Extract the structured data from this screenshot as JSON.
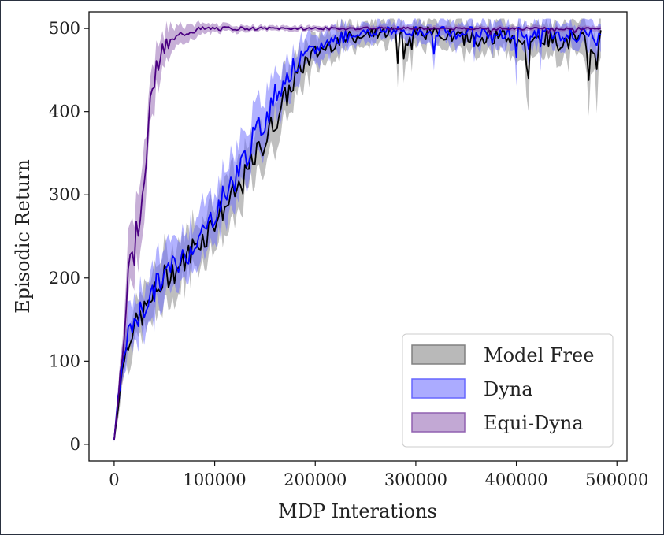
{
  "chart_data": {
    "type": "line",
    "title": "",
    "xlabel": "MDP Interations",
    "ylabel": "Episodic Return",
    "xlim": [
      -25000,
      510000
    ],
    "ylim": [
      -20,
      520
    ],
    "xticks": [
      0,
      100000,
      200000,
      300000,
      400000,
      500000
    ],
    "xtick_labels": [
      "0",
      "100000",
      "200000",
      "300000",
      "400000",
      "500000"
    ],
    "yticks": [
      0,
      100,
      200,
      300,
      400,
      500
    ],
    "ytick_labels": [
      "0",
      "100",
      "200",
      "300",
      "400",
      "500"
    ],
    "grid": false,
    "legend": {
      "position": "lower-right"
    },
    "series": [
      {
        "name": "Model Free",
        "color": "#000000",
        "band_color": "#808080",
        "x": [
          0,
          5000,
          10000,
          15000,
          20000,
          30000,
          40000,
          50000,
          60000,
          70000,
          80000,
          90000,
          100000,
          110000,
          120000,
          130000,
          140000,
          150000,
          160000,
          170000,
          180000,
          190000,
          200000,
          220000,
          240000,
          260000,
          280000,
          300000,
          320000,
          340000,
          360000,
          380000,
          400000,
          420000,
          440000,
          460000,
          480000,
          485000
        ],
        "y": [
          5,
          60,
          105,
          130,
          140,
          160,
          180,
          200,
          210,
          220,
          240,
          250,
          270,
          285,
          300,
          320,
          345,
          365,
          390,
          415,
          440,
          460,
          470,
          485,
          490,
          495,
          497,
          495,
          495,
          490,
          488,
          490,
          485,
          490,
          485,
          485,
          482,
          490
        ],
        "spread": [
          2,
          15,
          20,
          25,
          25,
          28,
          30,
          30,
          30,
          30,
          30,
          30,
          30,
          30,
          30,
          30,
          30,
          30,
          30,
          28,
          25,
          22,
          20,
          18,
          15,
          14,
          14,
          15,
          15,
          16,
          18,
          18,
          20,
          20,
          22,
          22,
          25,
          25
        ]
      },
      {
        "name": "Dyna",
        "color": "#0000ff",
        "band_color": "#6666ff",
        "x": [
          0,
          5000,
          10000,
          15000,
          20000,
          30000,
          40000,
          50000,
          60000,
          70000,
          80000,
          90000,
          100000,
          110000,
          120000,
          130000,
          140000,
          150000,
          160000,
          170000,
          180000,
          190000,
          200000,
          220000,
          240000,
          260000,
          280000,
          300000,
          320000,
          340000,
          360000,
          380000,
          400000,
          420000,
          440000,
          460000,
          480000,
          485000
        ],
        "y": [
          5,
          65,
          110,
          135,
          150,
          165,
          185,
          205,
          215,
          225,
          245,
          255,
          280,
          300,
          320,
          345,
          370,
          390,
          420,
          440,
          455,
          465,
          475,
          488,
          493,
          496,
          498,
          497,
          497,
          495,
          495,
          495,
          493,
          495,
          492,
          492,
          493,
          497
        ],
        "spread": [
          2,
          15,
          20,
          25,
          25,
          28,
          30,
          30,
          30,
          30,
          30,
          30,
          30,
          30,
          30,
          30,
          30,
          30,
          28,
          25,
          22,
          20,
          18,
          15,
          12,
          10,
          10,
          12,
          12,
          12,
          14,
          14,
          15,
          15,
          16,
          16,
          18,
          18
        ]
      },
      {
        "name": "Equi-Dyna",
        "color": "#4b0082",
        "band_color": "#9060b0",
        "x": [
          0,
          5000,
          10000,
          15000,
          20000,
          25000,
          30000,
          35000,
          40000,
          45000,
          50000,
          55000,
          60000,
          65000,
          70000,
          80000,
          90000,
          100000,
          120000,
          150000,
          200000,
          250000,
          300000,
          350000,
          400000,
          450000,
          485000
        ],
        "y": [
          5,
          70,
          140,
          240,
          230,
          280,
          330,
          390,
          440,
          470,
          475,
          480,
          485,
          490,
          495,
          498,
          499,
          500,
          500,
          500,
          500,
          500,
          500,
          500,
          500,
          500,
          500
        ],
        "spread": [
          3,
          20,
          30,
          40,
          40,
          40,
          40,
          35,
          30,
          25,
          20,
          18,
          15,
          12,
          10,
          8,
          6,
          5,
          4,
          3,
          3,
          3,
          3,
          3,
          3,
          3,
          3
        ]
      }
    ]
  }
}
